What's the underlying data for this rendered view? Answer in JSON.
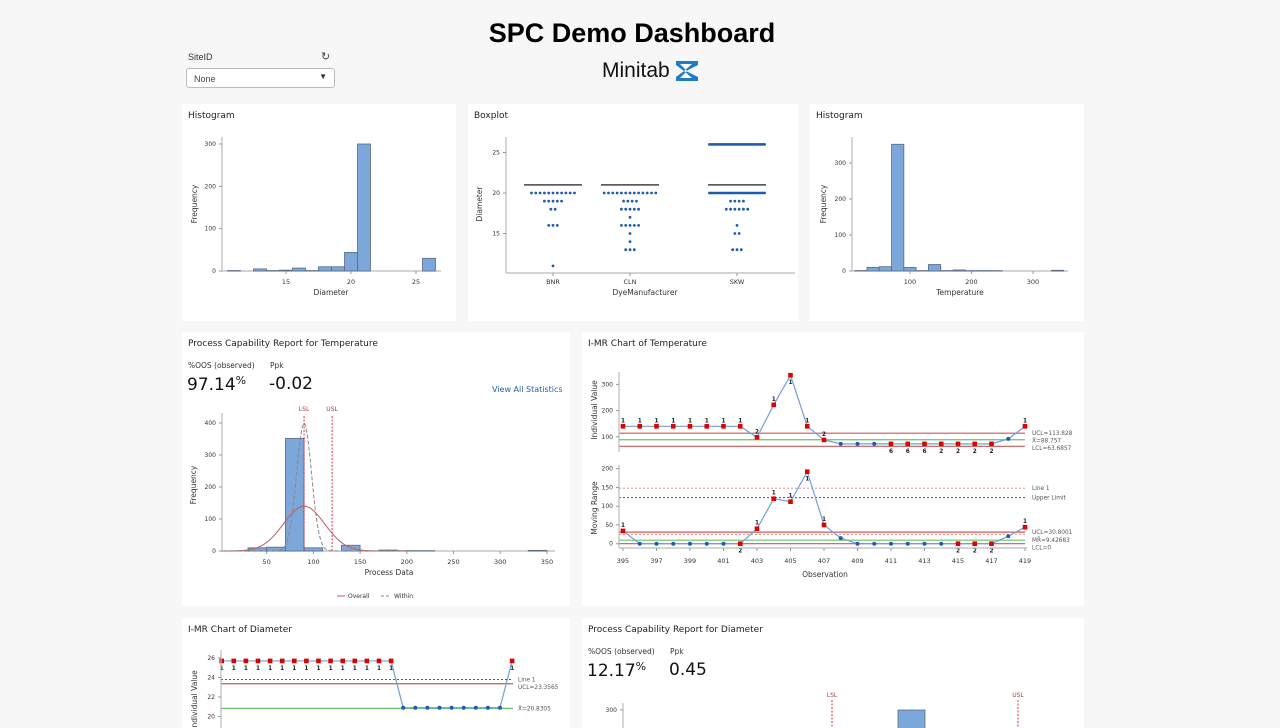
{
  "header": {
    "title": "SPC Demo Dashboard",
    "logo_text": "Minitab"
  },
  "filter": {
    "label": "SiteID",
    "selected": "None",
    "refresh_icon": "refresh-icon",
    "dropdown_icon": "caret-down-icon"
  },
  "colors": {
    "bar_fill": "#7ba7da",
    "bar_stroke": "#5b6c80",
    "out_point": "#e00000",
    "in_point": "#1f5bb0",
    "series_line": "#6fa0d8",
    "limit_red": "#c8595a",
    "center_green": "#6cc06c",
    "spec_red": "#d9323a",
    "link_blue": "#2a5ea8"
  },
  "panels": {
    "hist_diameter": {
      "title": "Histogram"
    },
    "boxplot": {
      "title": "Boxplot"
    },
    "hist_temperature": {
      "title": "Histogram"
    },
    "cap_temperature": {
      "title": "Process Capability Report for Temperature",
      "oos_label": "%OOS (observed)",
      "oos_value": "97.14",
      "oos_unit": "%",
      "ppk_label": "Ppk",
      "ppk_value": "-0.02",
      "link": "View All Statistics"
    },
    "imr_temperature": {
      "title": "I-MR Chart of Temperature"
    },
    "imr_diameter": {
      "title": "I-MR Chart of Diameter"
    },
    "cap_diameter": {
      "title": "Process Capability Report for Diameter",
      "oos_label": "%OOS (observed)",
      "oos_value": "12.17",
      "oos_unit": "%",
      "ppk_label": "Ppk",
      "ppk_value": "0.45"
    }
  },
  "chart_data": [
    {
      "id": "hist_diameter",
      "type": "bar",
      "xlabel": "Diameter",
      "ylabel": "Frequency",
      "bin_width": 1,
      "bin_centers": [
        11,
        12,
        13,
        14,
        15,
        16,
        17,
        18,
        19,
        20,
        21,
        26
      ],
      "values": [
        1,
        0,
        5,
        1,
        2,
        7,
        1,
        10,
        10,
        44,
        300,
        30
      ],
      "xticks": [
        15,
        20,
        25
      ],
      "yticks": [
        0,
        100,
        200,
        300
      ]
    },
    {
      "id": "boxplot",
      "type": "scatter",
      "xlabel": "DyeManufacturer",
      "ylabel": "Diameter",
      "categories": [
        "BNR",
        "CLN",
        "SKW"
      ],
      "median": [
        21,
        21,
        21
      ],
      "dots": [
        {
          "category": "BNR",
          "counts": {
            "20": 11,
            "19": 5,
            "18": 2,
            "16": 3,
            "11": 1
          }
        },
        {
          "category": "CLN",
          "counts": {
            "20": 13,
            "19": 4,
            "18": 5,
            "17": 1,
            "16": 5,
            "15": 1,
            "14": 1,
            "13": 3
          }
        },
        {
          "category": "SKW",
          "counts": {
            "26": 30,
            "20": 30,
            "19": 4,
            "18": 6,
            "16": 1,
            "15": 2,
            "13": 3
          }
        }
      ],
      "yticks": [
        15,
        20,
        25
      ]
    },
    {
      "id": "hist_temperature",
      "type": "bar",
      "xlabel": "Temperature",
      "ylabel": "Frequency",
      "bin_width": 20,
      "bin_centers": [
        20,
        40,
        60,
        80,
        100,
        120,
        140,
        160,
        180,
        200,
        220,
        240,
        340
      ],
      "values": [
        1,
        10,
        12,
        352,
        10,
        1,
        18,
        1,
        3,
        1,
        1,
        1,
        2
      ],
      "xticks": [
        100,
        200,
        300
      ],
      "yticks": [
        0,
        100,
        200,
        300
      ]
    },
    {
      "id": "cap_temperature",
      "type": "bar",
      "xlabel": "Process Data",
      "ylabel": "Frequency",
      "bin_width": 20,
      "bin_centers": [
        40,
        60,
        80,
        100,
        140,
        180,
        200,
        220,
        340
      ],
      "values": [
        10,
        12,
        352,
        10,
        18,
        3,
        1,
        1,
        2
      ],
      "xticks": [
        50,
        100,
        150,
        200,
        250,
        300,
        350
      ],
      "yticks": [
        0,
        100,
        200,
        300,
        400
      ],
      "spec_limits": [
        {
          "label": "LSL",
          "value": 90
        },
        {
          "label": "USL",
          "value": 120
        }
      ],
      "curves": [
        {
          "name": "Overall",
          "mean": 90,
          "peak": 140,
          "sd": 22
        },
        {
          "name": "Within",
          "mean": 90,
          "peak": 400,
          "sd": 8
        }
      ],
      "legend": "bottom"
    },
    {
      "id": "imr_temperature",
      "type": "line",
      "xlabel": "Observation",
      "x": [
        395,
        396,
        397,
        398,
        399,
        400,
        401,
        402,
        403,
        404,
        405,
        406,
        407,
        408,
        409,
        410,
        411,
        412,
        413,
        414,
        415,
        416,
        417,
        418,
        419
      ],
      "xticks": [
        395,
        397,
        399,
        401,
        403,
        405,
        407,
        409,
        411,
        413,
        415,
        417,
        419
      ],
      "individual": {
        "ylabel": "Individual Value",
        "yticks": [
          100,
          200,
          300
        ],
        "values": [
          140,
          140,
          140,
          140,
          140,
          140,
          140,
          140,
          98,
          222,
          335,
          140,
          88,
          73,
          73,
          73,
          73,
          73,
          73,
          73,
          73,
          73,
          73,
          92,
          140
        ],
        "flags": [
          "1",
          "1",
          "1",
          "1",
          "1",
          "1",
          "1",
          "1",
          "2",
          "1",
          "1",
          "1",
          "2",
          "",
          "",
          "",
          "6",
          "6",
          "6",
          "2",
          "2",
          "2",
          "2",
          "",
          "1"
        ],
        "limits": [
          {
            "label": "UCL=113.828",
            "value": 113.828,
            "kind": "ucl"
          },
          {
            "label": "X̄=88.757",
            "value": 88.757,
            "kind": "center"
          },
          {
            "label": "LCL=63.6857",
            "value": 63.6857,
            "kind": "lcl"
          }
        ]
      },
      "moving_range": {
        "ylabel": "Moving Range",
        "yticks": [
          0,
          50,
          100,
          150,
          200
        ],
        "values": [
          34,
          0,
          0,
          0,
          0,
          0,
          0,
          0,
          40,
          120,
          112,
          192,
          50,
          15,
          0,
          0,
          0,
          0,
          0,
          0,
          0,
          0,
          0,
          20,
          44
        ],
        "flags": [
          "1",
          "",
          "",
          "",
          "",
          "",
          "",
          "2",
          "1",
          "1",
          "1",
          "1",
          "1",
          "",
          "",
          "",
          "",
          "",
          "",
          "",
          "2",
          "2",
          "2",
          "",
          "1"
        ],
        "limits": [
          {
            "label": "Line 1",
            "value": 148,
            "kind": "ref1"
          },
          {
            "label": "Upper Limit",
            "value": 123,
            "kind": "ref2"
          },
          {
            "label": "UCL=30.8001",
            "value": 30.8001,
            "kind": "ucl"
          },
          {
            "label": "",
            "value": 25,
            "kind": "ref1"
          },
          {
            "label": "MR̄=9.42683",
            "value": 9.42683,
            "kind": "center"
          },
          {
            "label": "LCL=0",
            "value": 0,
            "kind": "lcl"
          }
        ]
      }
    },
    {
      "id": "imr_diameter",
      "type": "line",
      "individual": {
        "ylabel": "Individual Value",
        "yticks": [
          20,
          22,
          24,
          26
        ],
        "values": [
          25.7,
          25.7,
          25.7,
          25.7,
          25.7,
          25.7,
          25.7,
          25.7,
          25.7,
          25.7,
          25.7,
          25.7,
          25.7,
          25.7,
          25.7,
          20.9,
          20.9,
          20.9,
          20.9,
          20.9,
          20.9,
          20.9,
          20.9,
          20.9,
          25.7
        ],
        "flags": [
          "1",
          "1",
          "1",
          "1",
          "1",
          "1",
          "1",
          "1",
          "1",
          "1",
          "1",
          "1",
          "1",
          "1",
          "1",
          "",
          "",
          "",
          "",
          "",
          "",
          "",
          "",
          "",
          "1"
        ],
        "limits": [
          {
            "label": "Line 1",
            "value": 23.8,
            "kind": "ref2"
          },
          {
            "label": "UCL=23.3565",
            "value": 23.3565,
            "kind": "ucl"
          },
          {
            "label": "X̄=20.8305",
            "value": 20.8305,
            "kind": "center"
          }
        ]
      }
    },
    {
      "id": "cap_diameter",
      "type": "bar",
      "yticks": [
        300
      ],
      "spec_limits": [
        {
          "label": "LSL"
        },
        {
          "label": "USL"
        }
      ]
    }
  ]
}
